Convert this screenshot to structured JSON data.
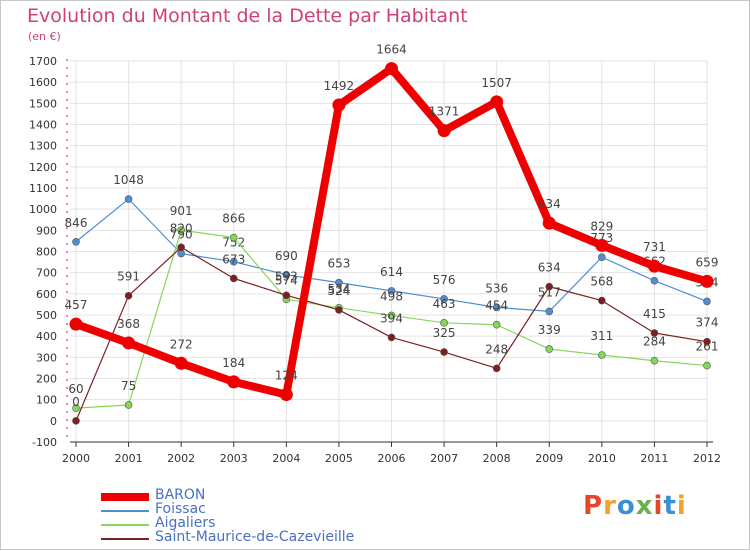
{
  "header": {
    "title": "Evolution du Montant de la Dette par Habitant",
    "subtitle": "(en €)"
  },
  "logo": {
    "text": "Proxiti",
    "colors": [
      "#e8462a",
      "#f2a12a",
      "#3a8fd6",
      "#6ab04c",
      "#e8462a",
      "#3a8fd6",
      "#f2a12a"
    ]
  },
  "chart_data": {
    "type": "line",
    "title": "Evolution du Montant de la Dette par Habitant",
    "ylabel": "(en €)",
    "xlabel": "",
    "x": [
      "2000",
      "2001",
      "2002",
      "2003",
      "2004",
      "2005",
      "2006",
      "2007",
      "2008",
      "2009",
      "2010",
      "2011",
      "2012"
    ],
    "ylim": [
      -100,
      1700
    ],
    "yticks": [
      -100,
      0,
      100,
      200,
      300,
      400,
      500,
      600,
      700,
      800,
      900,
      1000,
      1100,
      1200,
      1300,
      1400,
      1500,
      1600,
      1700
    ],
    "grid": true,
    "legend_position": "bottom-left",
    "series": [
      {
        "name": "BARON",
        "color": "#ee0000",
        "values": [
          457,
          368,
          272,
          184,
          124,
          1492,
          1664,
          1371,
          1507,
          934,
          829,
          731,
          659
        ]
      },
      {
        "name": "Foissac",
        "color": "#4f8fd0",
        "values": [
          846,
          1048,
          790,
          752,
          690,
          653,
          614,
          576,
          536,
          517,
          773,
          662,
          564
        ]
      },
      {
        "name": "Aigaliers",
        "color": "#86d65a",
        "values": [
          60,
          75,
          901,
          866,
          574,
          534,
          498,
          463,
          454,
          339,
          311,
          284,
          261
        ]
      },
      {
        "name": "Saint-Maurice-de-Cazevieille",
        "color": "#7a2020",
        "values": [
          0,
          591,
          820,
          673,
          593,
          524,
          394,
          325,
          248,
          634,
          568,
          415,
          374
        ]
      }
    ]
  }
}
